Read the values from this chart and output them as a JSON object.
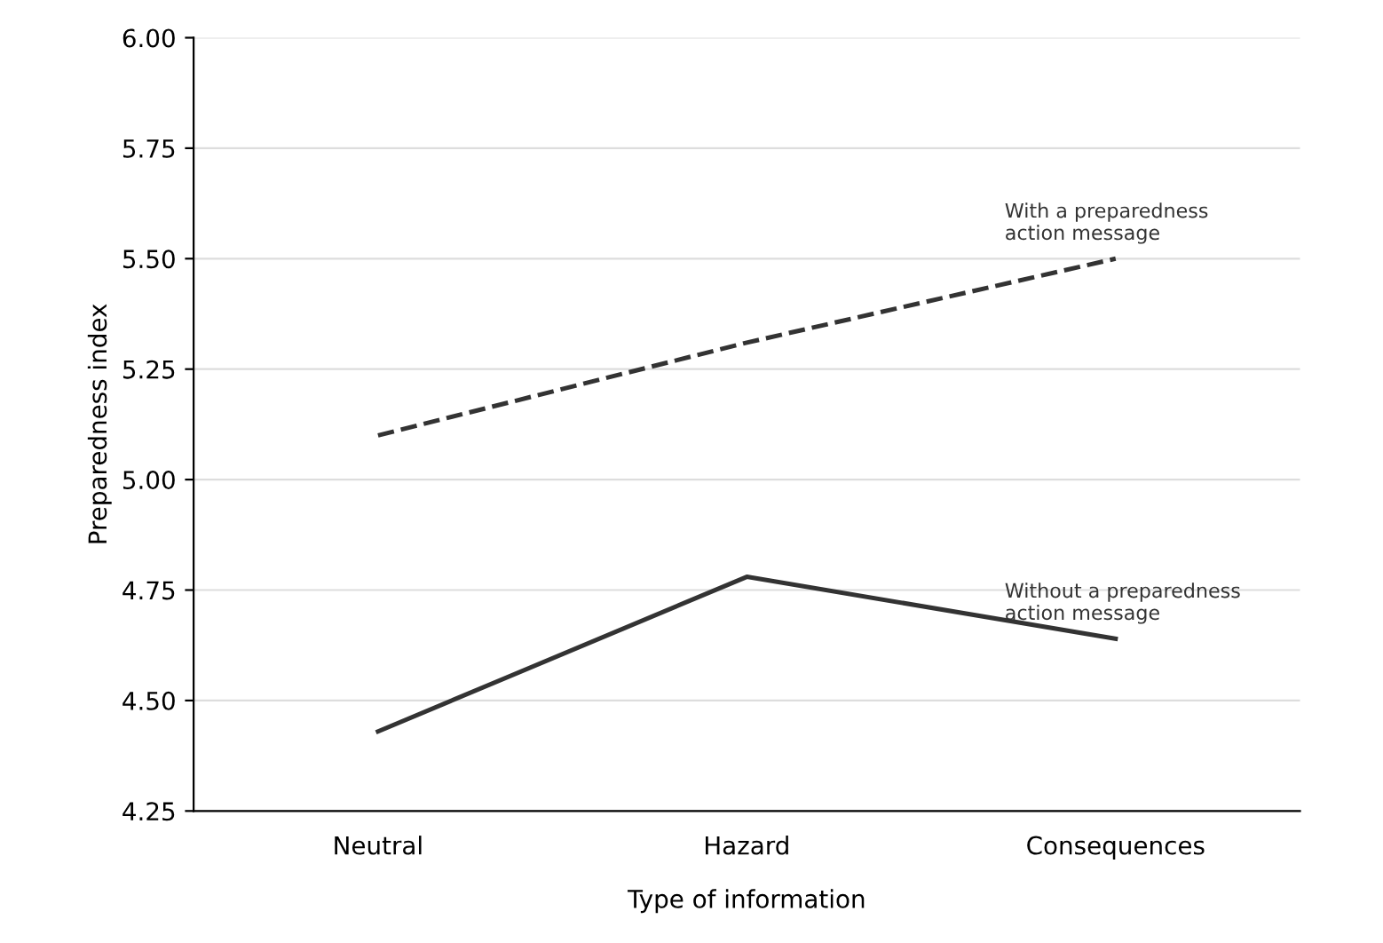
{
  "chart_data": {
    "type": "line",
    "xlabel": "Type of information",
    "ylabel": "Preparedness index",
    "categories": [
      "Neutral",
      "Hazard",
      "Consequences"
    ],
    "series": [
      {
        "name": "With a preparedness\naction message",
        "color": "#333333",
        "line_style": "dashed",
        "values": [
          5.1,
          5.31,
          5.5
        ]
      },
      {
        "name": "Without a preparedness\naction message",
        "color": "#333333",
        "line_style": "solid",
        "values": [
          4.43,
          4.78,
          4.64
        ]
      }
    ],
    "ylim": [
      4.25,
      6.0
    ],
    "yticks": [
      {
        "value": 4.25,
        "label": "4.25"
      },
      {
        "value": 4.5,
        "label": "4.50"
      },
      {
        "value": 4.75,
        "label": "4.75"
      },
      {
        "value": 5.0,
        "label": "5.00"
      },
      {
        "value": 5.25,
        "label": "5.25"
      },
      {
        "value": 5.5,
        "label": "5.50"
      },
      {
        "value": 5.75,
        "label": "5.75"
      },
      {
        "value": 6.0,
        "label": "6.00"
      }
    ],
    "grid": "y",
    "marker": "none",
    "legend": false
  }
}
